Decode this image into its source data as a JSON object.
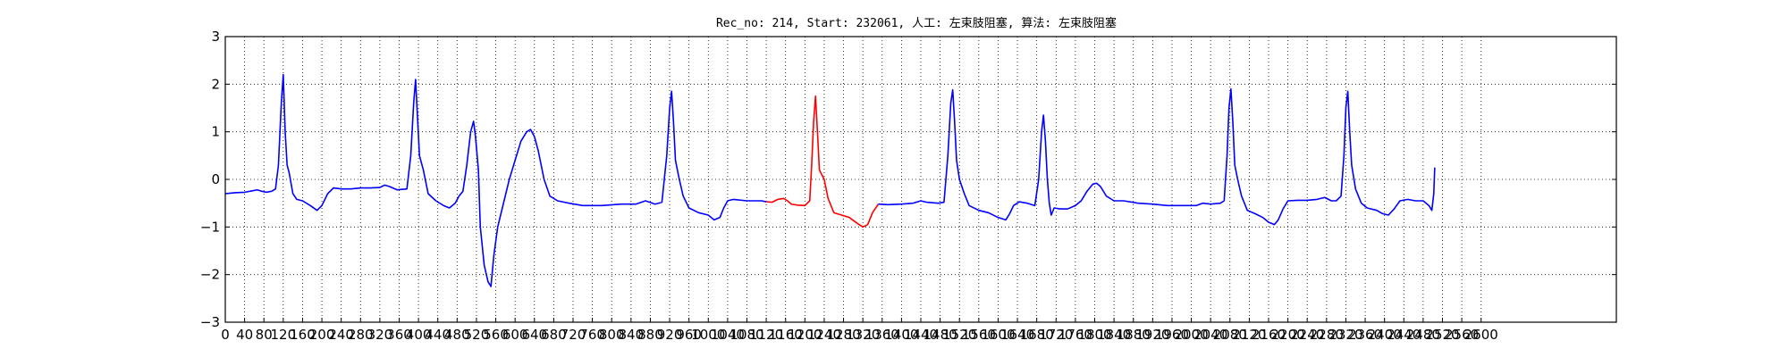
{
  "chart_data": {
    "type": "line",
    "title": "Rec_no: 214, Start: 232061, 人工: 左束肢阻塞, 算法: 左束肢阻塞",
    "xlabel": "",
    "ylabel": "",
    "xlim": [
      0,
      1440
    ],
    "ylim": [
      -3,
      3
    ],
    "xticks_step": 20,
    "xtick_labels": [
      "0",
      "40",
      "80",
      "120",
      "160",
      "200",
      "240",
      "280",
      "320",
      "360",
      "400",
      "440",
      "480",
      "520",
      "560",
      "600",
      "640",
      "680",
      "720",
      "760",
      "800",
      "840",
      "880",
      "920",
      "960",
      "1000",
      "1040",
      "1080",
      "1120",
      "1160",
      "1200",
      "1240",
      "1280",
      "1320",
      "1360",
      "1400",
      "1440",
      "1480",
      "1520",
      "1560",
      "1600",
      "1640",
      "1680",
      "1720",
      "1760",
      "1800",
      "1840",
      "1880",
      "1920",
      "1960",
      "2000",
      "2040",
      "2080",
      "2120",
      "2160",
      "2200",
      "2240",
      "2280",
      "2320",
      "2360",
      "2400",
      "2440",
      "2480",
      "2520",
      "2560",
      "2600"
    ],
    "yticks": [
      -3,
      -2,
      -1,
      0,
      1,
      2,
      3
    ],
    "ytick_labels": [
      "−3",
      "−2",
      "−1",
      "0",
      "1",
      "2",
      "3"
    ],
    "grid": true,
    "colors": {
      "normal": "#0000ff",
      "highlight": "#ff0000"
    },
    "segments": [
      {
        "color": "normal",
        "points": [
          [
            0,
            -0.3
          ],
          [
            10,
            -0.28
          ],
          [
            20,
            -0.27
          ],
          [
            28,
            -0.24
          ],
          [
            33,
            -0.22
          ],
          [
            38,
            -0.25
          ],
          [
            42,
            -0.27
          ],
          [
            48,
            -0.25
          ],
          [
            52,
            -0.2
          ],
          [
            55,
            0.3
          ],
          [
            58,
            1.6
          ],
          [
            60,
            2.2
          ],
          [
            62,
            1.0
          ],
          [
            64,
            0.3
          ],
          [
            66,
            0.15
          ],
          [
            70,
            -0.3
          ],
          [
            74,
            -0.42
          ],
          [
            80,
            -0.45
          ],
          [
            88,
            -0.55
          ],
          [
            95,
            -0.65
          ],
          [
            100,
            -0.55
          ],
          [
            106,
            -0.3
          ],
          [
            112,
            -0.18
          ],
          [
            120,
            -0.2
          ],
          [
            130,
            -0.2
          ],
          [
            140,
            -0.18
          ],
          [
            150,
            -0.18
          ],
          [
            160,
            -0.17
          ],
          [
            165,
            -0.12
          ],
          [
            170,
            -0.15
          ],
          [
            178,
            -0.22
          ],
          [
            188,
            -0.2
          ],
          [
            192,
            0.5
          ],
          [
            195,
            1.6
          ],
          [
            197,
            2.1
          ],
          [
            199,
            1.3
          ],
          [
            201,
            0.5
          ],
          [
            205,
            0.2
          ],
          [
            210,
            -0.3
          ],
          [
            218,
            -0.45
          ],
          [
            226,
            -0.55
          ],
          [
            232,
            -0.6
          ],
          [
            238,
            -0.5
          ],
          [
            242,
            -0.35
          ],
          [
            246,
            -0.25
          ],
          [
            250,
            0.3
          ],
          [
            254,
            1.0
          ],
          [
            257,
            1.22
          ],
          [
            259,
            0.9
          ],
          [
            262,
            0.2
          ],
          [
            264,
            -1.0
          ],
          [
            268,
            -1.8
          ],
          [
            272,
            -2.15
          ],
          [
            275,
            -2.25
          ],
          [
            278,
            -1.6
          ],
          [
            282,
            -1.0
          ],
          [
            288,
            -0.5
          ],
          [
            294,
            0.0
          ],
          [
            300,
            0.4
          ],
          [
            306,
            0.8
          ],
          [
            312,
            1.0
          ],
          [
            316,
            1.05
          ],
          [
            320,
            0.9
          ],
          [
            324,
            0.6
          ],
          [
            330,
            0.0
          ],
          [
            336,
            -0.35
          ],
          [
            344,
            -0.45
          ],
          [
            356,
            -0.5
          ],
          [
            370,
            -0.55
          ],
          [
            390,
            -0.55
          ],
          [
            410,
            -0.52
          ],
          [
            425,
            -0.52
          ],
          [
            435,
            -0.45
          ],
          [
            445,
            -0.52
          ],
          [
            452,
            -0.48
          ],
          [
            457,
            0.5
          ],
          [
            460,
            1.5
          ],
          [
            462,
            1.85
          ],
          [
            464,
            1.2
          ],
          [
            466,
            0.4
          ],
          [
            470,
            0.0
          ],
          [
            474,
            -0.35
          ],
          [
            480,
            -0.6
          ],
          [
            490,
            -0.7
          ],
          [
            500,
            -0.75
          ],
          [
            506,
            -0.85
          ],
          [
            512,
            -0.8
          ],
          [
            516,
            -0.6
          ],
          [
            520,
            -0.45
          ],
          [
            526,
            -0.42
          ],
          [
            540,
            -0.45
          ],
          [
            555,
            -0.45
          ],
          [
            560,
            -0.47
          ]
        ]
      },
      {
        "color": "highlight",
        "points": [
          [
            560,
            -0.47
          ],
          [
            566,
            -0.48
          ],
          [
            572,
            -0.42
          ],
          [
            578,
            -0.4
          ],
          [
            582,
            -0.45
          ],
          [
            586,
            -0.52
          ],
          [
            592,
            -0.54
          ],
          [
            600,
            -0.55
          ],
          [
            605,
            -0.45
          ],
          [
            607,
            0.3
          ],
          [
            609,
            1.2
          ],
          [
            611,
            1.75
          ],
          [
            613,
            1.0
          ],
          [
            615,
            0.2
          ],
          [
            620,
            0.0
          ],
          [
            624,
            -0.4
          ],
          [
            630,
            -0.7
          ],
          [
            638,
            -0.75
          ],
          [
            646,
            -0.8
          ],
          [
            654,
            -0.92
          ],
          [
            660,
            -1.0
          ],
          [
            665,
            -0.95
          ],
          [
            670,
            -0.7
          ],
          [
            676,
            -0.52
          ]
        ]
      },
      {
        "color": "normal",
        "points": [
          [
            676,
            -0.52
          ],
          [
            686,
            -0.53
          ],
          [
            700,
            -0.52
          ],
          [
            712,
            -0.5
          ],
          [
            720,
            -0.45
          ],
          [
            726,
            -0.48
          ],
          [
            738,
            -0.5
          ],
          [
            744,
            -0.48
          ],
          [
            748,
            0.5
          ],
          [
            751,
            1.6
          ],
          [
            753,
            1.88
          ],
          [
            755,
            1.2
          ],
          [
            757,
            0.4
          ],
          [
            760,
            0.0
          ],
          [
            765,
            -0.3
          ],
          [
            770,
            -0.55
          ],
          [
            780,
            -0.65
          ],
          [
            790,
            -0.7
          ],
          [
            800,
            -0.8
          ],
          [
            808,
            -0.85
          ],
          [
            812,
            -0.72
          ],
          [
            816,
            -0.55
          ],
          [
            822,
            -0.47
          ],
          [
            830,
            -0.5
          ],
          [
            838,
            -0.55
          ],
          [
            842,
            0.0
          ],
          [
            845,
            1.0
          ],
          [
            847,
            1.35
          ],
          [
            849,
            0.8
          ],
          [
            851,
            0.0
          ],
          [
            853,
            -0.5
          ],
          [
            855,
            -0.75
          ],
          [
            858,
            -0.6
          ],
          [
            864,
            -0.62
          ],
          [
            872,
            -0.62
          ],
          [
            880,
            -0.55
          ],
          [
            886,
            -0.45
          ],
          [
            892,
            -0.25
          ],
          [
            898,
            -0.1
          ],
          [
            902,
            -0.08
          ],
          [
            906,
            -0.15
          ],
          [
            912,
            -0.35
          ],
          [
            920,
            -0.45
          ],
          [
            930,
            -0.45
          ],
          [
            945,
            -0.5
          ],
          [
            960,
            -0.52
          ],
          [
            975,
            -0.55
          ],
          [
            990,
            -0.55
          ],
          [
            1005,
            -0.55
          ],
          [
            1012,
            -0.5
          ],
          [
            1020,
            -0.52
          ],
          [
            1030,
            -0.5
          ],
          [
            1034,
            -0.45
          ],
          [
            1037,
            0.5
          ],
          [
            1039,
            1.5
          ],
          [
            1041,
            1.9
          ],
          [
            1043,
            1.2
          ],
          [
            1045,
            0.3
          ],
          [
            1048,
            0.0
          ],
          [
            1052,
            -0.35
          ],
          [
            1058,
            -0.65
          ],
          [
            1066,
            -0.72
          ],
          [
            1074,
            -0.8
          ],
          [
            1080,
            -0.9
          ],
          [
            1086,
            -0.95
          ],
          [
            1090,
            -0.85
          ],
          [
            1095,
            -0.62
          ],
          [
            1100,
            -0.45
          ],
          [
            1110,
            -0.44
          ],
          [
            1120,
            -0.44
          ],
          [
            1130,
            -0.42
          ],
          [
            1138,
            -0.38
          ],
          [
            1145,
            -0.45
          ],
          [
            1150,
            -0.45
          ],
          [
            1155,
            -0.35
          ],
          [
            1158,
            0.5
          ],
          [
            1160,
            1.5
          ],
          [
            1162,
            1.85
          ],
          [
            1164,
            1.0
          ],
          [
            1166,
            0.3
          ],
          [
            1170,
            -0.2
          ],
          [
            1176,
            -0.5
          ],
          [
            1182,
            -0.6
          ],
          [
            1192,
            -0.65
          ],
          [
            1198,
            -0.72
          ],
          [
            1204,
            -0.75
          ],
          [
            1210,
            -0.62
          ],
          [
            1216,
            -0.45
          ],
          [
            1224,
            -0.42
          ],
          [
            1232,
            -0.45
          ],
          [
            1240,
            -0.45
          ],
          [
            1246,
            -0.55
          ],
          [
            1249,
            -0.65
          ],
          [
            1251,
            -0.3
          ],
          [
            1252,
            0.25
          ]
        ]
      }
    ]
  }
}
